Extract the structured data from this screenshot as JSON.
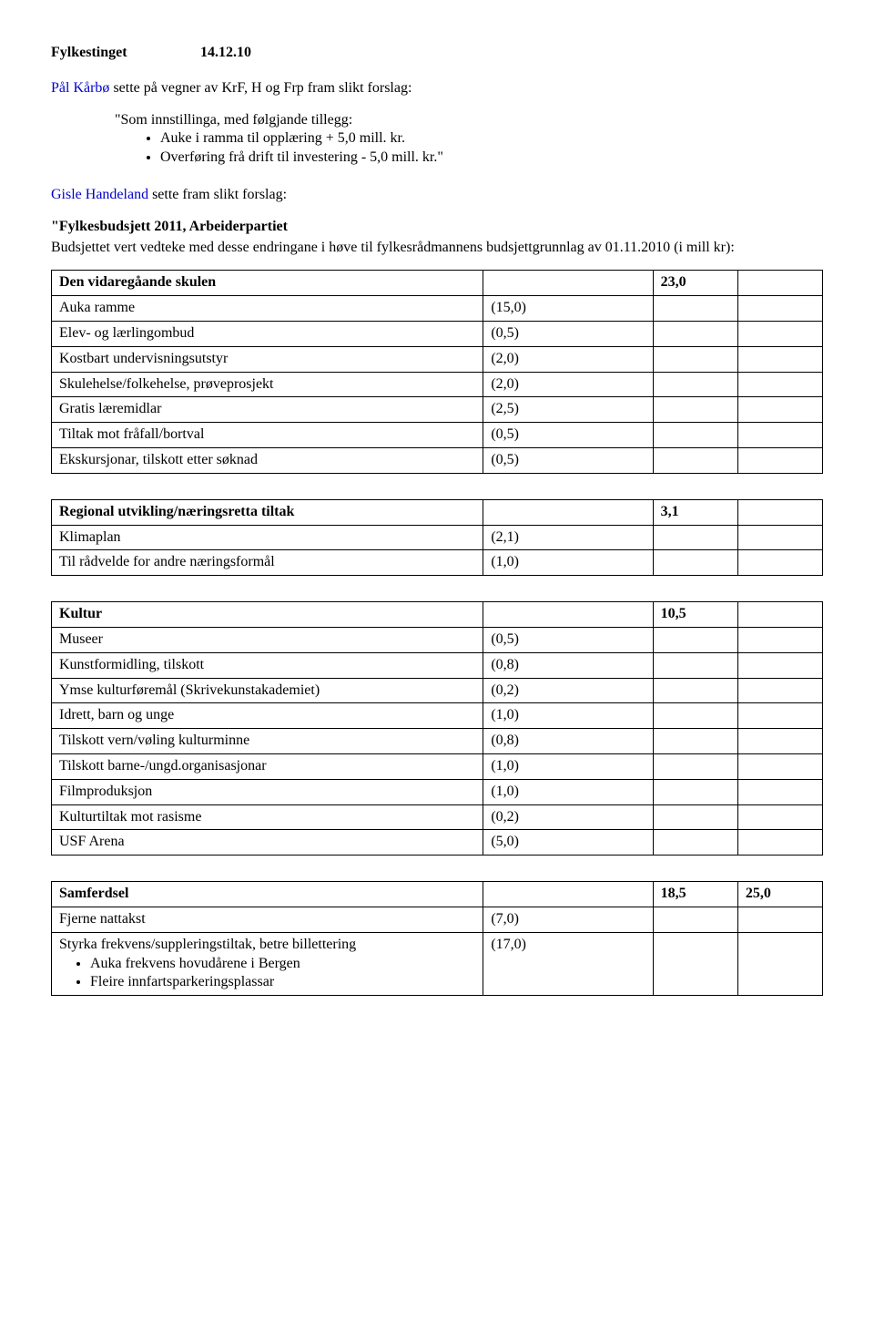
{
  "header": {
    "left": "Fylkestinget",
    "right": "14.12.10"
  },
  "intro": {
    "name": "Pål Kårbø",
    "rest": " sette på vegner av KrF, H og Frp fram slikt forslag:"
  },
  "quote": {
    "lead": "\"Som innstillinga, med følgjande tillegg:",
    "bullets": [
      "Auke i ramma til opplæring  + 5,0 mill. kr.",
      "Overføring frå drift til investering    - 5,0 mill. kr.\""
    ]
  },
  "gisle": {
    "name": "Gisle Handeland",
    "rest": " sette fram slikt forslag:"
  },
  "fb": {
    "title": "\"Fylkesbudsjett 2011, Arbeiderpartiet",
    "para": "Budsjettet vert vedteke med desse endringane i høve til fylkesrådmannens budsjettgrunnlag av 01.11.2010 (i mill kr):"
  },
  "t1": {
    "header": {
      "label": "Den vidaregåande skulen",
      "total": "23,0"
    },
    "rows": [
      {
        "label": "Auka ramme",
        "val": "(15,0)"
      },
      {
        "label": "Elev- og lærlingombud",
        "val": "(0,5)"
      },
      {
        "label": "Kostbart undervisningsutstyr",
        "val": "(2,0)"
      },
      {
        "label": "Skulehelse/folkehelse,  prøveprosjekt",
        "val": "(2,0)"
      },
      {
        "label": "Gratis læremidlar",
        "val": "(2,5)"
      },
      {
        "label": "Tiltak  mot fråfall/bortval",
        "val": "(0,5)"
      },
      {
        "label": "Ekskursjonar, tilskott etter søknad",
        "val": "(0,5)"
      }
    ]
  },
  "t2": {
    "header": {
      "label": "Regional utvikling/næringsretta tiltak",
      "total": "3,1"
    },
    "rows": [
      {
        "label": "Klimaplan",
        "val": "(2,1)"
      },
      {
        "label": "Til rådvelde for andre næringsformål",
        "val": "(1,0)"
      }
    ]
  },
  "t3": {
    "header": {
      "label": "Kultur",
      "total": "10,5"
    },
    "rows": [
      {
        "label": "Museer",
        "val": "(0,5)"
      },
      {
        "label": "Kunstformidling, tilskott",
        "val": "(0,8)"
      },
      {
        "label": "Ymse kulturføremål (Skrivekunstakademiet)",
        "val": "(0,2)"
      },
      {
        "label": "Idrett, barn og unge",
        "val": "(1,0)"
      },
      {
        "label": "Tilskott vern/vøling kulturminne",
        "val": "(0,8)"
      },
      {
        "label": "Tilskott barne-/ungd.organisasjonar",
        "val": "(1,0)"
      },
      {
        "label": "Filmproduksjon",
        "val": "(1,0)"
      },
      {
        "label": "Kulturtiltak mot rasisme",
        "val": "(0,2)"
      },
      {
        "label": "USF Arena",
        "val": "(5,0)"
      }
    ]
  },
  "t4": {
    "header": {
      "label": "Samferdsel",
      "total": "18,5",
      "extra": "25,0"
    },
    "rows": [
      {
        "label": "Fjerne nattakst",
        "val": "(7,0)"
      },
      {
        "label": "Styrka frekvens/suppleringstiltak, betre billettering",
        "val": "(17,0)",
        "sub": [
          "Auka frekvens hovudårene i Bergen",
          "Fleire innfartsparkeringsplassar"
        ]
      }
    ]
  }
}
